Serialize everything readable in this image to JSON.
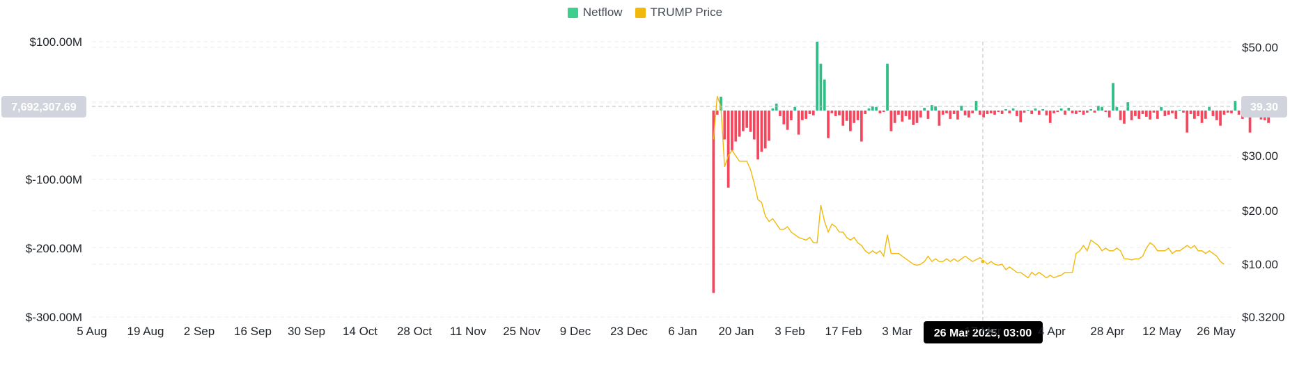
{
  "legend": {
    "netflow_label": "Netflow",
    "price_label": "TRUMP Price",
    "netflow_color": "#3ecf8e",
    "price_color": "#f0b90b"
  },
  "crosshair": {
    "date_label": "26 Mar 2025, 03:00",
    "left_value_label": "7,692,307.69",
    "right_value_label": "39.30"
  },
  "chart_data": {
    "type": "bar",
    "x_tick_labels": [
      "5 Aug",
      "19 Aug",
      "2 Sep",
      "16 Sep",
      "30 Sep",
      "14 Oct",
      "28 Oct",
      "11 Nov",
      "25 Nov",
      "9 Dec",
      "23 Dec",
      "6 Jan",
      "20 Jan",
      "3 Feb",
      "17 Feb",
      "3 Mar",
      "17 Mar",
      "4 Apr",
      "28 Apr",
      "12 May",
      "26 May"
    ],
    "y_left_ticks": [
      "$100.00M",
      "$-100.00M",
      "$-200.00M",
      "$-300.00M"
    ],
    "y_left_tick_values": [
      100,
      -100,
      -200,
      -300
    ],
    "y_left_range": [
      -300,
      100
    ],
    "y_right_ticks": [
      "$50.00",
      "$30.00",
      "$20.00",
      "$10.00",
      "$0.3200"
    ],
    "y_right_tick_values": [
      50,
      30,
      20,
      10,
      0.32
    ],
    "grid": true,
    "legend_position": "top-center",
    "series": [
      {
        "name": "Netflow",
        "unit": "$M",
        "colors": {
          "positive": "#2ebd85",
          "negative": "#f6465d"
        },
        "x_start_day": 168,
        "x_step_days": 1,
        "values": [
          -265,
          -6,
          20,
          -42,
          -112,
          -58,
          -45,
          -38,
          -30,
          -25,
          -31,
          -42,
          -71,
          -60,
          -55,
          -44,
          3,
          10,
          -8,
          -20,
          -28,
          -14,
          5,
          -35,
          -14,
          -12,
          -5,
          -7,
          100,
          68,
          45,
          -40,
          -4,
          -8,
          -7,
          -22,
          -15,
          -30,
          -18,
          -14,
          -45,
          -5,
          3,
          6,
          5,
          -4,
          -2,
          68,
          -30,
          -18,
          -6,
          -16,
          -8,
          -13,
          -21,
          -18,
          -10,
          4,
          -12,
          8,
          6,
          -22,
          -6,
          -4,
          -12,
          -5,
          -13,
          7,
          -7,
          -10,
          -4,
          14,
          -6,
          -10,
          -5,
          -4,
          -6,
          -2,
          -5,
          2,
          -4,
          3,
          -8,
          -17,
          -3,
          1,
          -5,
          3,
          -6,
          2,
          -7,
          -18,
          -4,
          -2,
          3,
          -6,
          4,
          -4,
          -5,
          -2,
          -6,
          -3,
          2,
          -3,
          7,
          5,
          -2,
          -10,
          40,
          5,
          -14,
          -19,
          12,
          -14,
          -8,
          -12,
          -5,
          -9,
          -13,
          -3,
          -12,
          5,
          -8,
          -6,
          -4,
          -12,
          1,
          -3,
          -32,
          -5,
          -12,
          -8,
          -18,
          -12,
          5,
          -8,
          -14,
          -22,
          -6,
          -3,
          -4,
          14,
          -6,
          -12,
          -9,
          -32,
          -6,
          -5,
          -13,
          -14,
          -18,
          -6,
          -10
        ]
      },
      {
        "name": "TRUMP Price",
        "unit": "$",
        "color": "#f0b90b",
        "x_start_day": 168,
        "points": [
          [
            168,
            33
          ],
          [
            169,
            41
          ],
          [
            170,
            39
          ],
          [
            171,
            28
          ],
          [
            172,
            30
          ],
          [
            173,
            31
          ],
          [
            175,
            29
          ],
          [
            177,
            29
          ],
          [
            178,
            27.5
          ],
          [
            179,
            25
          ],
          [
            180,
            22
          ],
          [
            181,
            21.5
          ],
          [
            182,
            19
          ],
          [
            183,
            18
          ],
          [
            184,
            18.5
          ],
          [
            185,
            17.5
          ],
          [
            186,
            16.5
          ],
          [
            187,
            16.5
          ],
          [
            188,
            17
          ],
          [
            189,
            16
          ],
          [
            190,
            15.5
          ],
          [
            191,
            15
          ],
          [
            193,
            14.5
          ],
          [
            194,
            15
          ],
          [
            195,
            14
          ],
          [
            196,
            14
          ],
          [
            197,
            21
          ],
          [
            198,
            18
          ],
          [
            199,
            16
          ],
          [
            200,
            17.5
          ],
          [
            201,
            17
          ],
          [
            202,
            16
          ],
          [
            203,
            16
          ],
          [
            204,
            15
          ],
          [
            205,
            14.5
          ],
          [
            206,
            15
          ],
          [
            207,
            14
          ],
          [
            208,
            13.5
          ],
          [
            209,
            12.5
          ],
          [
            210,
            12
          ],
          [
            211,
            12.5
          ],
          [
            212,
            12
          ],
          [
            213,
            12.5
          ],
          [
            214,
            11.5
          ],
          [
            215,
            15.5
          ],
          [
            216,
            12
          ],
          [
            217,
            12
          ],
          [
            218,
            12
          ],
          [
            219,
            11.5
          ],
          [
            220,
            11
          ],
          [
            221,
            10.5
          ],
          [
            222,
            10
          ],
          [
            223,
            9.8
          ],
          [
            224,
            10
          ],
          [
            225,
            10.5
          ],
          [
            226,
            11.5
          ],
          [
            227,
            10.5
          ],
          [
            228,
            11
          ],
          [
            229,
            10.5
          ],
          [
            230,
            10.5
          ],
          [
            231,
            11
          ],
          [
            232,
            10.5
          ],
          [
            233,
            11
          ],
          [
            234,
            10.5
          ],
          [
            235,
            11
          ],
          [
            236,
            11.5
          ],
          [
            237,
            11
          ],
          [
            238,
            10.5
          ],
          [
            240,
            11.2
          ],
          [
            241,
            10.8
          ],
          [
            242,
            10
          ],
          [
            243,
            10.5
          ],
          [
            244,
            10
          ],
          [
            245,
            9.8
          ],
          [
            246,
            10
          ],
          [
            247,
            9
          ],
          [
            248,
            9.5
          ],
          [
            249,
            9
          ],
          [
            250,
            8.5
          ],
          [
            251,
            8.5
          ],
          [
            252,
            8
          ],
          [
            253,
            7.5
          ],
          [
            254,
            8.5
          ],
          [
            255,
            8
          ],
          [
            256,
            8.5
          ],
          [
            257,
            8
          ],
          [
            258,
            7.5
          ],
          [
            259,
            8
          ],
          [
            260,
            7.5
          ],
          [
            261,
            7.8
          ],
          [
            262,
            8
          ],
          [
            263,
            8.5
          ],
          [
            264,
            8.5
          ],
          [
            265,
            8.5
          ],
          [
            266,
            12
          ],
          [
            267,
            12.5
          ],
          [
            268,
            13.5
          ],
          [
            269,
            12.5
          ],
          [
            270,
            14.5
          ],
          [
            271,
            14
          ],
          [
            272,
            13.5
          ],
          [
            273,
            12.5
          ],
          [
            274,
            13
          ],
          [
            275,
            12.5
          ],
          [
            276,
            12.5
          ],
          [
            277,
            13
          ],
          [
            278,
            12.5
          ],
          [
            279,
            11
          ],
          [
            280,
            11
          ],
          [
            281,
            10.8
          ],
          [
            282,
            11
          ],
          [
            283,
            11
          ],
          [
            284,
            11.5
          ],
          [
            285,
            13
          ],
          [
            286,
            14
          ],
          [
            287,
            13.5
          ],
          [
            288,
            12.5
          ],
          [
            289,
            12.5
          ],
          [
            290,
            12.5
          ],
          [
            291,
            13
          ],
          [
            292,
            12
          ],
          [
            293,
            12.5
          ],
          [
            294,
            12.5
          ],
          [
            295,
            13
          ],
          [
            296,
            13.5
          ],
          [
            297,
            13
          ],
          [
            298,
            13.5
          ],
          [
            299,
            12.5
          ],
          [
            300,
            12.5
          ],
          [
            301,
            12
          ],
          [
            302,
            12.5
          ],
          [
            303,
            12
          ],
          [
            304,
            11.5
          ],
          [
            305,
            10.5
          ],
          [
            306,
            10
          ]
        ]
      }
    ]
  }
}
